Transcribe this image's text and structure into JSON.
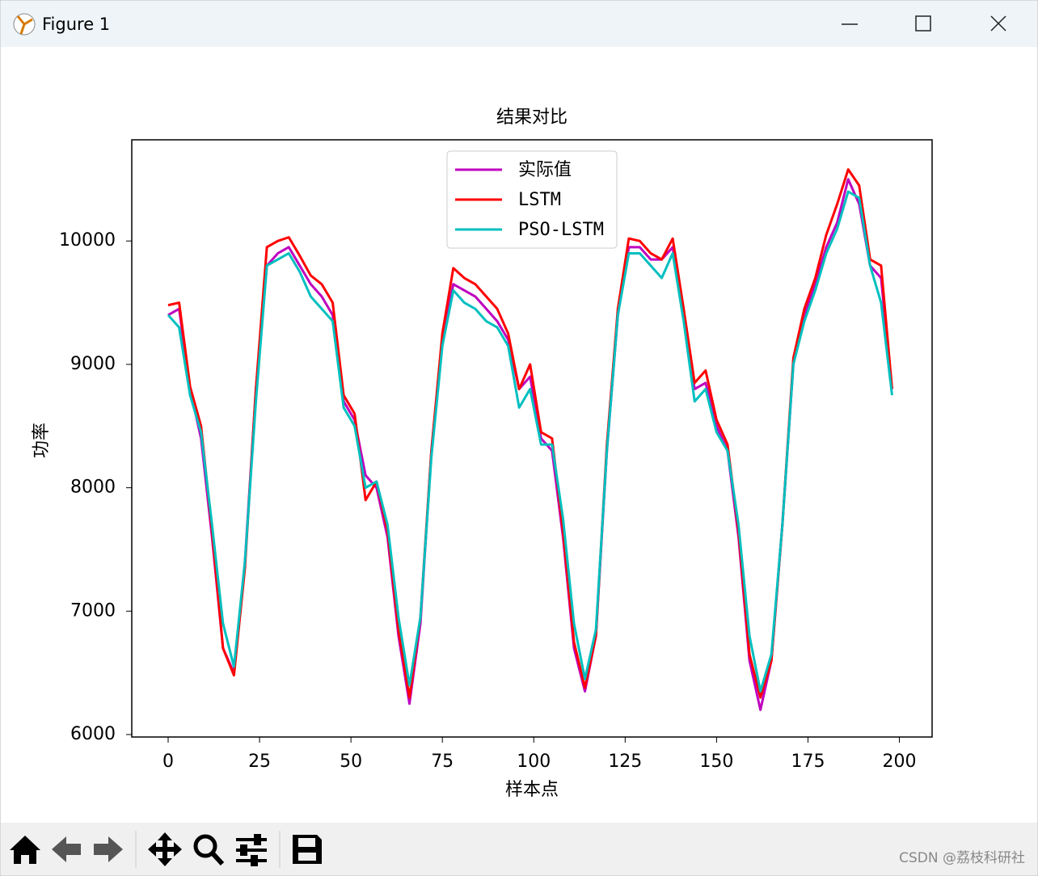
{
  "window": {
    "title": "Figure 1",
    "watermark": "CSDN @荔枝科研社"
  },
  "chart_data": {
    "type": "line",
    "title": "结果对比",
    "xlabel": "样本点",
    "ylabel": "功率",
    "x": [
      0,
      3,
      6,
      9,
      12,
      15,
      18,
      21,
      24,
      27,
      30,
      33,
      36,
      39,
      42,
      45,
      48,
      51,
      54,
      57,
      60,
      63,
      66,
      69,
      72,
      75,
      78,
      81,
      84,
      87,
      90,
      93,
      96,
      99,
      102,
      105,
      108,
      111,
      114,
      117,
      120,
      123,
      126,
      129,
      132,
      135,
      138,
      141,
      144,
      147,
      150,
      153,
      156,
      159,
      162,
      165,
      168,
      171,
      174,
      177,
      180,
      183,
      186,
      189,
      192,
      195,
      198
    ],
    "series": [
      {
        "name": "实际值",
        "color": "#bf00bf",
        "values": [
          9400,
          9450,
          8800,
          8400,
          7600,
          6700,
          6500,
          7400,
          8800,
          9800,
          9900,
          9950,
          9800,
          9650,
          9550,
          9400,
          8700,
          8550,
          8100,
          8000,
          7600,
          6800,
          6250,
          6900,
          8300,
          9200,
          9650,
          9600,
          9550,
          9450,
          9350,
          9200,
          8800,
          8900,
          8400,
          8300,
          7600,
          6700,
          6350,
          6800,
          8300,
          9400,
          9950,
          9950,
          9850,
          9850,
          9950,
          9400,
          8800,
          8850,
          8500,
          8300,
          7600,
          6600,
          6200,
          6600,
          7700,
          9000,
          9400,
          9650,
          9950,
          10150,
          10500,
          10300,
          9800,
          9700,
          8800
        ]
      },
      {
        "name": "LSTM",
        "color": "#ff0000",
        "values": [
          9480,
          9500,
          8820,
          8500,
          7650,
          6700,
          6480,
          7350,
          8800,
          9950,
          10000,
          10030,
          9880,
          9720,
          9650,
          9500,
          8750,
          8600,
          7900,
          8050,
          7650,
          6850,
          6300,
          6950,
          8300,
          9250,
          9780,
          9700,
          9650,
          9550,
          9450,
          9250,
          8800,
          9000,
          8450,
          8400,
          7650,
          6750,
          6380,
          6800,
          8350,
          9450,
          10020,
          10000,
          9900,
          9850,
          10020,
          9450,
          8850,
          8950,
          8550,
          8350,
          7650,
          6650,
          6300,
          6600,
          7700,
          9050,
          9450,
          9700,
          10050,
          10300,
          10580,
          10450,
          9850,
          9800,
          8800
        ]
      },
      {
        "name": "PSO-LSTM",
        "color": "#00bfbf",
        "values": [
          9400,
          9300,
          8750,
          8450,
          7700,
          6900,
          6550,
          7400,
          8700,
          9800,
          9850,
          9900,
          9750,
          9550,
          9450,
          9350,
          8650,
          8500,
          8000,
          8050,
          7700,
          6950,
          6400,
          6950,
          8250,
          9150,
          9600,
          9500,
          9450,
          9350,
          9300,
          9150,
          8650,
          8800,
          8350,
          8350,
          7750,
          6900,
          6450,
          6850,
          8300,
          9400,
          9900,
          9900,
          9800,
          9700,
          9900,
          9350,
          8700,
          8800,
          8450,
          8300,
          7700,
          6800,
          6350,
          6650,
          7700,
          9000,
          9350,
          9600,
          9900,
          10100,
          10400,
          10350,
          9800,
          9500,
          8750
        ]
      }
    ],
    "xlim": [
      -9.95,
      208.95
    ],
    "ylim": [
      5980,
      10820
    ],
    "xticks": [
      0,
      25,
      50,
      75,
      100,
      125,
      150,
      175,
      200
    ],
    "yticks": [
      6000,
      7000,
      8000,
      9000,
      10000
    ],
    "legend": "upper center"
  }
}
